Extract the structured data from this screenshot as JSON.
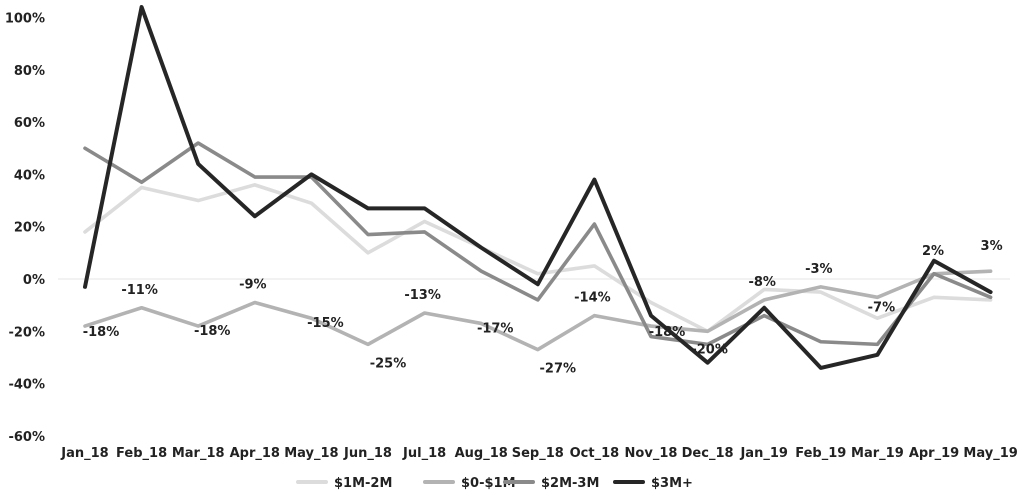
{
  "chart_data": {
    "type": "line",
    "title": "",
    "xlabel": "",
    "ylabel": "",
    "ylim": [
      -60,
      100
    ],
    "yticks": [
      100,
      80,
      60,
      40,
      20,
      0,
      -20,
      -40,
      -60
    ],
    "ytick_labels": [
      "100%",
      "80%",
      "60%",
      "40%",
      "20%",
      "0%",
      "-20%",
      "-40%",
      "-60%"
    ],
    "categories": [
      "Jan_18",
      "Feb_18",
      "Mar_18",
      "Apr_18",
      "May_18",
      "Jun_18",
      "Jul_18",
      "Aug_18",
      "Sep_18",
      "Oct_18",
      "Nov_18",
      "Dec_18",
      "Jan_19",
      "Feb_19",
      "Mar_19",
      "Apr_19",
      "May_19"
    ],
    "grid": false,
    "legend_position": "bottom",
    "series": [
      {
        "name": "$1M-2M",
        "color": "#dcdcdc",
        "values": [
          18,
          35,
          30,
          36,
          29,
          10,
          22,
          12,
          2,
          5,
          -9,
          -20,
          -4,
          -5,
          -15,
          -7,
          -8
        ]
      },
      {
        "name": "$0-$1M",
        "color": "#b3b3b3",
        "values": [
          -18,
          -11,
          -18,
          -9,
          -15,
          -25,
          -13,
          -17,
          -27,
          -14,
          -18,
          -20,
          -8,
          -3,
          -7,
          2,
          3
        ],
        "data_labels": [
          "-18%",
          "-11%",
          "-18%",
          "-9%",
          "-15%",
          "-25%",
          "-13%",
          "-17%",
          "-27%",
          "-14%",
          "-18%",
          "-20%",
          "-8%",
          "-3%",
          "-7%",
          "2%",
          "3%"
        ]
      },
      {
        "name": "$2M-3M",
        "color": "#8a8a8a",
        "values": [
          50,
          37,
          52,
          39,
          39,
          17,
          18,
          3,
          -8,
          21,
          -22,
          -25,
          -14,
          -24,
          -25,
          2,
          -7
        ]
      },
      {
        "name": "$3M+",
        "color": "#262626",
        "values": [
          -3,
          104,
          44,
          24,
          40,
          27,
          27,
          12,
          -2,
          38,
          -14,
          -32,
          -11,
          -34,
          -29,
          7,
          -5
        ]
      }
    ]
  }
}
